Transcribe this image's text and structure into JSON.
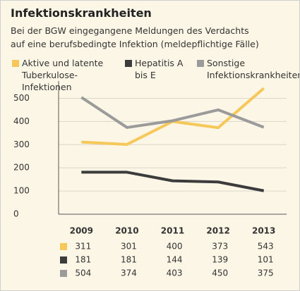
{
  "chart_data": {
    "type": "line",
    "title": "Infektionskrankheiten",
    "subtitle": "Bei der BGW eingegangene Meldungen des Verdachts auf eine berufsbedingte Infektion (meldepflichtige Fälle)",
    "categories": [
      "2009",
      "2010",
      "2011",
      "2012",
      "2013"
    ],
    "series": [
      {
        "name": "Aktive und latente Tuberkulose-Infektionen",
        "color": "#f6c85a",
        "values": [
          311,
          301,
          400,
          373,
          543
        ]
      },
      {
        "name": "Hepatitis A bis E",
        "color": "#3c3c3c",
        "values": [
          181,
          181,
          144,
          139,
          101
        ]
      },
      {
        "name": "Sonstige Infektionskrankheiten",
        "color": "#9b9b9b",
        "values": [
          504,
          374,
          403,
          450,
          375
        ]
      }
    ],
    "ylim": [
      0,
      550
    ],
    "yticks": [
      0,
      100,
      200,
      300,
      400,
      500
    ],
    "grid": true
  }
}
